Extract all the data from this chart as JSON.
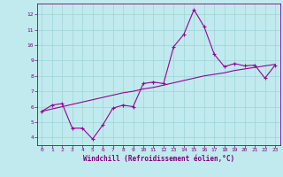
{
  "x": [
    0,
    1,
    2,
    3,
    4,
    5,
    6,
    7,
    8,
    9,
    10,
    11,
    12,
    13,
    14,
    15,
    16,
    17,
    18,
    19,
    20,
    21,
    22,
    23
  ],
  "y_jagged": [
    5.7,
    6.1,
    6.2,
    4.6,
    4.6,
    3.9,
    4.8,
    5.9,
    6.1,
    6.0,
    7.5,
    7.6,
    7.5,
    9.9,
    10.7,
    12.3,
    11.2,
    9.4,
    8.6,
    8.8,
    8.65,
    8.7,
    7.85,
    8.7
  ],
  "y_smooth": [
    5.7,
    5.85,
    6.0,
    6.15,
    6.3,
    6.45,
    6.6,
    6.75,
    6.9,
    7.0,
    7.15,
    7.25,
    7.4,
    7.55,
    7.7,
    7.85,
    8.0,
    8.1,
    8.2,
    8.35,
    8.45,
    8.55,
    8.65,
    8.75
  ],
  "line_color": "#990099",
  "smooth_color": "#990099",
  "bg_color": "#c0eaed",
  "grid_color": "#9dd4d8",
  "axis_color": "#800080",
  "text_color": "#800080",
  "xlabel": "Windchill (Refroidissement éolien,°C)",
  "ylim": [
    3.5,
    12.7
  ],
  "xlim": [
    -0.5,
    23.5
  ],
  "yticks": [
    4,
    5,
    6,
    7,
    8,
    9,
    10,
    11,
    12
  ],
  "xticks": [
    0,
    1,
    2,
    3,
    4,
    5,
    6,
    7,
    8,
    9,
    10,
    11,
    12,
    13,
    14,
    15,
    16,
    17,
    18,
    19,
    20,
    21,
    22,
    23
  ]
}
